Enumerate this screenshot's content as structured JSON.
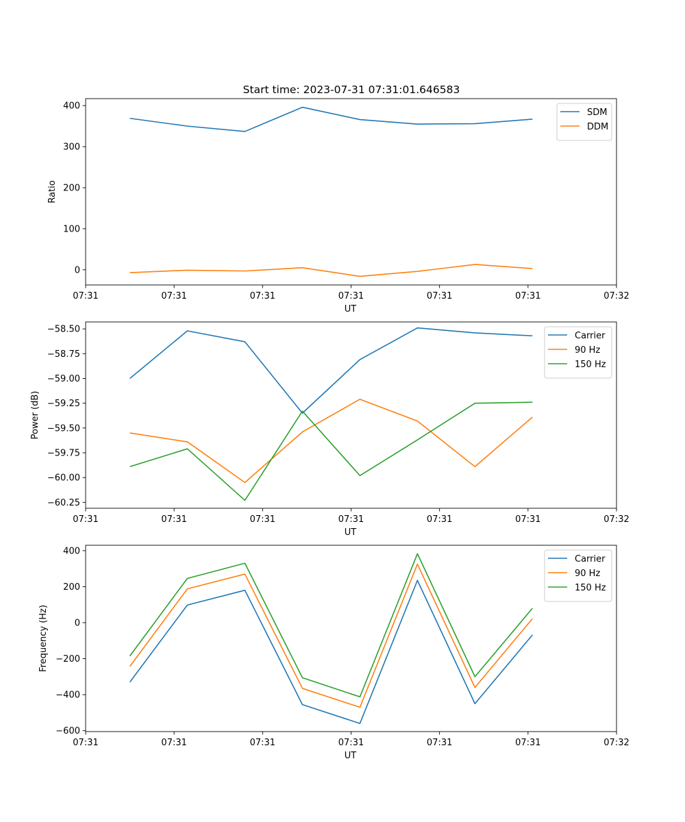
{
  "title": "Start time: 2023-07-31 07:31:01.646583",
  "colors": {
    "blue": "#1f77b4",
    "orange": "#ff7f0e",
    "green": "#2ca02c"
  },
  "chart_data": [
    {
      "type": "line",
      "title": "Start time: 2023-07-31 07:31:01.646583",
      "xlabel": "UT",
      "ylabel": "Ratio",
      "xlim": [
        0,
        6
      ],
      "ylim": [
        -37,
        417
      ],
      "x": [
        0.5,
        1.15,
        1.8,
        2.45,
        3.1,
        3.75,
        4.4,
        5.05
      ],
      "xticks": [
        0,
        1,
        2,
        3,
        4,
        5,
        6
      ],
      "xtick_labels": [
        "07:31",
        "07:31",
        "07:31",
        "07:31",
        "07:31",
        "07:31",
        "07:32"
      ],
      "yticks": [
        0,
        100,
        200,
        300,
        400
      ],
      "ytick_labels": [
        "0",
        "100",
        "200",
        "300",
        "400"
      ],
      "legend_position": "upper-right",
      "series": [
        {
          "name": "SDM",
          "color": "#1f77b4",
          "values": [
            369,
            350,
            337,
            396,
            366,
            355,
            356,
            367
          ]
        },
        {
          "name": "DDM",
          "color": "#ff7f0e",
          "values": [
            -7,
            -1,
            -3,
            5,
            -16,
            -4,
            13,
            3
          ]
        }
      ]
    },
    {
      "type": "line",
      "title": "",
      "xlabel": "UT",
      "ylabel": "Power (dB)",
      "xlim": [
        0,
        6
      ],
      "ylim": [
        -60.31,
        -58.43
      ],
      "x": [
        0.5,
        1.15,
        1.8,
        2.45,
        3.1,
        3.75,
        4.4,
        5.05
      ],
      "xticks": [
        0,
        1,
        2,
        3,
        4,
        5,
        6
      ],
      "xtick_labels": [
        "07:31",
        "07:31",
        "07:31",
        "07:31",
        "07:31",
        "07:31",
        "07:32"
      ],
      "yticks": [
        -58.5,
        -58.75,
        -59.0,
        -59.25,
        -59.5,
        -59.75,
        -60.0,
        -60.25
      ],
      "ytick_labels": [
        "−58.50",
        "−58.75",
        "−59.00",
        "−59.25",
        "−59.50",
        "−59.75",
        "−60.00",
        "−60.25"
      ],
      "legend_position": "upper-right",
      "series": [
        {
          "name": "Carrier",
          "color": "#1f77b4",
          "values": [
            -59.0,
            -58.52,
            -58.63,
            -59.35,
            -58.81,
            -58.49,
            -58.54,
            -58.57
          ]
        },
        {
          "name": "90 Hz",
          "color": "#ff7f0e",
          "values": [
            -59.55,
            -59.64,
            -60.05,
            -59.54,
            -59.21,
            -59.43,
            -59.89,
            -59.39
          ]
        },
        {
          "name": "150 Hz",
          "color": "#2ca02c",
          "values": [
            -59.89,
            -59.71,
            -60.23,
            -59.33,
            -59.98,
            -59.62,
            -59.25,
            -59.24
          ]
        }
      ]
    },
    {
      "type": "line",
      "title": "",
      "xlabel": "UT",
      "ylabel": "Frequency (Hz)",
      "xlim": [
        0,
        6
      ],
      "ylim": [
        -605,
        430
      ],
      "x": [
        0.5,
        1.15,
        1.8,
        2.45,
        3.1,
        3.75,
        4.4,
        5.05
      ],
      "xticks": [
        0,
        1,
        2,
        3,
        4,
        5,
        6
      ],
      "xtick_labels": [
        "07:31",
        "07:31",
        "07:31",
        "07:31",
        "07:31",
        "07:31",
        "07:32"
      ],
      "yticks": [
        400,
        200,
        0,
        -200,
        -400,
        -600
      ],
      "ytick_labels": [
        "400",
        "200",
        "0",
        "−200",
        "−400",
        "−600"
      ],
      "legend_position": "upper-right",
      "series": [
        {
          "name": "Carrier",
          "color": "#1f77b4",
          "values": [
            -330,
            98,
            180,
            -455,
            -560,
            235,
            -450,
            -68
          ]
        },
        {
          "name": "90 Hz",
          "color": "#ff7f0e",
          "values": [
            -243,
            188,
            270,
            -365,
            -470,
            325,
            -360,
            22
          ]
        },
        {
          "name": "150 Hz",
          "color": "#2ca02c",
          "values": [
            -185,
            246,
            330,
            -306,
            -412,
            383,
            -300,
            80
          ]
        }
      ]
    }
  ]
}
